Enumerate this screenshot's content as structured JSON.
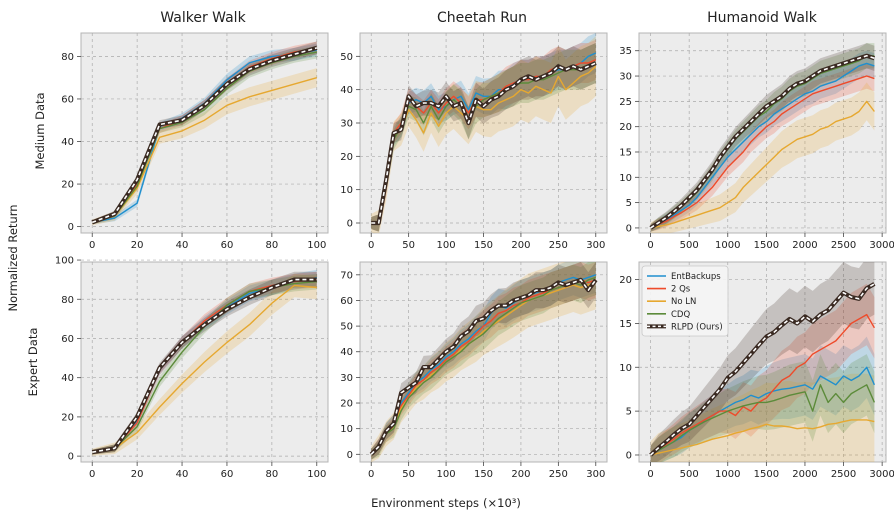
{
  "figure": {
    "col_titles": [
      "Walker Walk",
      "Cheetah Run",
      "Humanoid Walk"
    ],
    "row_labels": [
      "Medium Data",
      "Expert Data"
    ],
    "ylabel": "Normalized Return",
    "xlabel": "Environment steps",
    "xlabel_unit": "(×10³)"
  },
  "legend": [
    {
      "name": "EntBackups",
      "color": "#1f8fce"
    },
    {
      "name": "2 Qs",
      "color": "#ee4b2b"
    },
    {
      "name": "No LN",
      "color": "#e6a830"
    },
    {
      "name": "CDQ",
      "color": "#5c8b3a"
    },
    {
      "name": "RLPD (Ours)",
      "color": "#3a2a22"
    }
  ],
  "chart_data": [
    {
      "type": "line",
      "title": "Walker Walk",
      "row": "Medium Data",
      "x": [
        0,
        10,
        20,
        30,
        40,
        50,
        60,
        70,
        80,
        90,
        100
      ],
      "xlim": [
        -5,
        105
      ],
      "ylim": [
        -3,
        91
      ],
      "xticks": [
        0,
        20,
        40,
        60,
        80,
        100
      ],
      "yticks": [
        0,
        20,
        40,
        60,
        80
      ],
      "series": [
        {
          "name": "EntBackups",
          "values": [
            2,
            4,
            11,
            47,
            51,
            58,
            69,
            77,
            80,
            81,
            83
          ]
        },
        {
          "name": "2 Qs",
          "values": [
            2,
            5,
            20,
            46,
            50,
            57,
            67,
            75,
            79,
            82,
            84
          ]
        },
        {
          "name": "No LN",
          "values": [
            2,
            5,
            18,
            42,
            45,
            50,
            57,
            61,
            64,
            67,
            70
          ]
        },
        {
          "name": "CDQ",
          "values": [
            2,
            5,
            19,
            46,
            49,
            55,
            65,
            73,
            77,
            80,
            82
          ]
        },
        {
          "name": "RLPD (Ours)",
          "values": [
            2,
            6,
            22,
            48,
            50,
            57,
            67,
            74,
            78,
            81,
            84
          ]
        }
      ]
    },
    {
      "type": "line",
      "title": "Cheetah Run",
      "row": "Medium Data",
      "x": [
        0,
        10,
        20,
        30,
        40,
        50,
        60,
        70,
        80,
        90,
        100,
        110,
        120,
        130,
        140,
        150,
        160,
        170,
        180,
        190,
        200,
        210,
        220,
        230,
        240,
        250,
        260,
        270,
        280,
        290,
        300
      ],
      "xlim": [
        -15,
        315
      ],
      "ylim": [
        -3,
        57
      ],
      "xticks": [
        0,
        50,
        100,
        150,
        200,
        250,
        300
      ],
      "yticks": [
        0,
        10,
        20,
        30,
        40,
        50
      ],
      "series": [
        {
          "name": "EntBackups",
          "values": [
            0,
            0,
            12,
            26,
            29,
            36,
            37,
            36,
            38,
            34,
            35,
            37,
            38,
            34,
            39,
            38,
            38,
            40,
            40,
            42,
            43,
            43,
            44,
            44,
            45,
            46,
            46,
            47,
            48,
            50,
            51
          ]
        },
        {
          "name": "2 Qs",
          "values": [
            0,
            0,
            11,
            27,
            30,
            37,
            35,
            33,
            36,
            33,
            36,
            38,
            36,
            33,
            37,
            37,
            38,
            39,
            41,
            42,
            43,
            43,
            44,
            44,
            46,
            47,
            46,
            47,
            48,
            48,
            49
          ]
        },
        {
          "name": "No LN",
          "values": [
            0,
            0,
            11,
            26,
            28,
            34,
            31,
            27,
            33,
            29,
            33,
            35,
            33,
            31,
            35,
            34,
            34,
            36,
            37,
            38,
            40,
            39,
            41,
            40,
            39,
            44,
            40,
            42,
            44,
            45,
            47
          ]
        },
        {
          "name": "CDQ",
          "values": [
            0,
            0,
            12,
            25,
            29,
            35,
            34,
            30,
            35,
            31,
            35,
            37,
            35,
            30,
            35,
            37,
            38,
            39,
            40,
            41,
            42,
            42,
            43,
            43,
            44,
            45,
            46,
            46,
            46,
            47,
            48
          ]
        },
        {
          "name": "RLPD (Ours)",
          "values": [
            0,
            0,
            13,
            27,
            28,
            38,
            35,
            36,
            36,
            35,
            38,
            35,
            36,
            30,
            37,
            35,
            37,
            38,
            40,
            41,
            43,
            44,
            43,
            44,
            45,
            47,
            46,
            47,
            46,
            47,
            48
          ]
        }
      ]
    },
    {
      "type": "line",
      "title": "Humanoid Walk",
      "row": "Medium Data",
      "x": [
        0,
        100,
        200,
        300,
        400,
        500,
        600,
        700,
        800,
        900,
        1000,
        1100,
        1200,
        1300,
        1400,
        1500,
        1600,
        1700,
        1800,
        1900,
        2000,
        2100,
        2200,
        2300,
        2400,
        2500,
        2600,
        2700,
        2800,
        2900
      ],
      "xlim": [
        -150,
        3050
      ],
      "ylim": [
        -1,
        38.5
      ],
      "xticks": [
        0,
        500,
        1000,
        1500,
        2000,
        2500,
        3000
      ],
      "yticks": [
        0,
        5,
        10,
        15,
        20,
        25,
        30,
        35
      ],
      "series": [
        {
          "name": "EntBackups",
          "values": [
            0,
            0.8,
            1.5,
            2.5,
            3.5,
            4.5,
            6,
            8,
            10,
            12,
            14,
            15.5,
            17,
            18.5,
            20,
            21,
            22.5,
            23.5,
            24.5,
            25.5,
            26.5,
            27,
            28,
            28.5,
            29,
            30,
            31,
            32,
            32.5,
            32
          ]
        },
        {
          "name": "2 Qs",
          "values": [
            0,
            0.7,
            1.3,
            2.2,
            3,
            4,
            5,
            6.5,
            8,
            10,
            12,
            13.5,
            15,
            17,
            18.5,
            20,
            21,
            22.5,
            23.5,
            24.5,
            25.5,
            26.5,
            27,
            27.5,
            28,
            28.5,
            29,
            29.5,
            30,
            29.5
          ]
        },
        {
          "name": "No LN",
          "values": [
            0,
            0.3,
            0.6,
            1,
            1.5,
            2,
            2.5,
            3,
            3.5,
            4,
            5,
            6,
            8,
            9.5,
            11,
            12.5,
            14,
            15.5,
            16.5,
            17.5,
            18,
            18.5,
            19.5,
            20,
            21,
            21.5,
            22,
            23,
            25,
            23
          ]
        },
        {
          "name": "CDQ",
          "values": [
            0,
            0.9,
            1.8,
            3,
            4.2,
            5.5,
            7,
            9,
            11,
            13.5,
            15.5,
            17.5,
            19,
            20.5,
            22,
            23,
            24.5,
            25.5,
            27,
            28,
            28.5,
            29.5,
            30.5,
            31,
            31.5,
            32,
            32.5,
            33,
            34,
            34
          ]
        },
        {
          "name": "RLPD (Ours)",
          "values": [
            0,
            1,
            2,
            3.2,
            4.5,
            6,
            7.5,
            9.5,
            11.5,
            14,
            16,
            18,
            19.5,
            21,
            22.5,
            24,
            25,
            26,
            27.5,
            28.5,
            29,
            30,
            31,
            31.5,
            32,
            32.5,
            33,
            33.5,
            34,
            33.5
          ]
        }
      ]
    },
    {
      "type": "line",
      "title": "Walker Walk",
      "row": "Expert Data",
      "x": [
        0,
        10,
        20,
        30,
        40,
        50,
        60,
        70,
        80,
        90,
        100
      ],
      "xlim": [
        -5,
        105
      ],
      "ylim": [
        -3,
        99
      ],
      "xticks": [
        0,
        20,
        40,
        60,
        80,
        100
      ],
      "yticks": [
        0,
        20,
        40,
        60,
        80,
        100
      ],
      "series": [
        {
          "name": "EntBackups",
          "values": [
            2,
            4,
            18,
            44,
            58,
            68,
            76,
            83,
            86,
            89,
            91
          ]
        },
        {
          "name": "2 Qs",
          "values": [
            2,
            4,
            17,
            44,
            58,
            69,
            77,
            84,
            87,
            89,
            90
          ]
        },
        {
          "name": "No LN",
          "values": [
            2,
            4,
            12,
            25,
            37,
            48,
            58,
            67,
            78,
            87,
            86
          ]
        },
        {
          "name": "CDQ",
          "values": [
            2,
            4,
            15,
            38,
            53,
            66,
            77,
            84,
            86,
            88,
            89
          ]
        },
        {
          "name": "RLPD (Ours)",
          "values": [
            2,
            4,
            20,
            45,
            58,
            67,
            75,
            81,
            86,
            90,
            90
          ]
        }
      ]
    },
    {
      "type": "line",
      "title": "Cheetah Run",
      "row": "Expert Data",
      "x": [
        0,
        10,
        20,
        30,
        40,
        50,
        60,
        70,
        80,
        90,
        100,
        110,
        120,
        130,
        140,
        150,
        160,
        170,
        180,
        190,
        200,
        210,
        220,
        230,
        240,
        250,
        260,
        270,
        280,
        290,
        300
      ],
      "xlim": [
        -15,
        315
      ],
      "ylim": [
        -3,
        75
      ],
      "xticks": [
        0,
        50,
        100,
        150,
        200,
        250,
        300
      ],
      "yticks": [
        0,
        10,
        20,
        30,
        40,
        50,
        60,
        70
      ],
      "series": [
        {
          "name": "EntBackups",
          "values": [
            0,
            3,
            9,
            12,
            20,
            24,
            28,
            30,
            33,
            35,
            38,
            40,
            43,
            45,
            48,
            50,
            55,
            58,
            57,
            59,
            61,
            62,
            63,
            64,
            65,
            67,
            68,
            69,
            68,
            69,
            70
          ]
        },
        {
          "name": "2 Qs",
          "values": [
            0,
            3,
            8,
            11,
            19,
            23,
            27,
            29,
            32,
            34,
            37,
            39,
            42,
            44,
            47,
            50,
            52,
            55,
            56,
            58,
            59,
            61,
            62,
            63,
            64,
            65,
            66,
            67,
            68,
            67,
            68
          ]
        },
        {
          "name": "No LN",
          "values": [
            0,
            3,
            8,
            11,
            18,
            22,
            26,
            28,
            31,
            33,
            36,
            38,
            41,
            43,
            45,
            48,
            50,
            52,
            54,
            56,
            58,
            60,
            61,
            62,
            63,
            64,
            65,
            66,
            65,
            66,
            67
          ]
        },
        {
          "name": "CDQ",
          "values": [
            0,
            2,
            8,
            10,
            17,
            22,
            25,
            28,
            30,
            33,
            36,
            38,
            40,
            43,
            45,
            47,
            50,
            53,
            55,
            57,
            59,
            60,
            61,
            62,
            64,
            65,
            66,
            67,
            66,
            68,
            69
          ]
        },
        {
          "name": "RLPD (Ours)",
          "values": [
            0,
            3,
            9,
            12,
            24,
            26,
            28,
            34,
            34,
            37,
            40,
            42,
            46,
            48,
            52,
            53,
            56,
            58,
            58,
            60,
            61,
            62,
            64,
            64,
            65,
            67,
            66,
            67,
            68,
            64,
            68
          ]
        }
      ]
    },
    {
      "type": "line",
      "title": "Humanoid Walk",
      "row": "Expert Data",
      "x": [
        0,
        100,
        200,
        300,
        400,
        500,
        600,
        700,
        800,
        900,
        1000,
        1100,
        1200,
        1300,
        1400,
        1500,
        1600,
        1700,
        1800,
        1900,
        2000,
        2100,
        2200,
        2300,
        2400,
        2500,
        2600,
        2700,
        2800,
        2900
      ],
      "xlim": [
        -150,
        3050
      ],
      "ylim": [
        -0.8,
        22
      ],
      "xticks": [
        0,
        500,
        1000,
        1500,
        2000,
        2500,
        3000
      ],
      "yticks": [
        0,
        5,
        10,
        15,
        20
      ],
      "series": [
        {
          "name": "EntBackups",
          "values": [
            0,
            0.5,
            1,
            1.5,
            2,
            2.8,
            3.3,
            4,
            4.5,
            5,
            5.5,
            6,
            6.3,
            6.8,
            6.5,
            7,
            7.3,
            7.5,
            7.6,
            7.8,
            8,
            7.5,
            9,
            8.5,
            8,
            9,
            8.5,
            9,
            10,
            8
          ]
        },
        {
          "name": "2 Qs",
          "values": [
            0,
            0.5,
            1.2,
            1.8,
            2.5,
            3,
            3.5,
            4,
            4.5,
            5,
            5,
            4.5,
            5.5,
            5,
            6,
            6.5,
            7.5,
            8.5,
            9,
            10,
            10.5,
            11.5,
            12,
            12.5,
            13,
            14,
            15,
            15.5,
            16,
            14.5
          ]
        },
        {
          "name": "No LN",
          "values": [
            0,
            0.2,
            0.4,
            0.6,
            0.8,
            1,
            1.2,
            1.5,
            1.8,
            2,
            2.2,
            2.5,
            2.7,
            3,
            3.2,
            3.5,
            3.3,
            3.3,
            3.2,
            3,
            3.1,
            3,
            3.2,
            3.5,
            3.6,
            3.8,
            4,
            4,
            4,
            3.8
          ]
        },
        {
          "name": "CDQ",
          "values": [
            0,
            0.5,
            1,
            1.5,
            2.2,
            2.8,
            3.3,
            3.8,
            4.2,
            4.6,
            5,
            5.3,
            5.6,
            5.8,
            6,
            6,
            6.2,
            6.5,
            6.8,
            7,
            7.2,
            5,
            8,
            6,
            7,
            6,
            7,
            7.5,
            8,
            6
          ]
        },
        {
          "name": "RLPD (Ours)",
          "values": [
            0,
            0.8,
            1.5,
            2.3,
            3,
            3.5,
            4.5,
            5.5,
            6.5,
            7.5,
            8.8,
            9.5,
            10.5,
            11.5,
            12.5,
            13.5,
            14,
            14.8,
            15.5,
            15,
            15.8,
            15.2,
            16,
            16.5,
            17.5,
            18.5,
            18,
            17.8,
            19,
            19.5
          ]
        }
      ]
    }
  ]
}
